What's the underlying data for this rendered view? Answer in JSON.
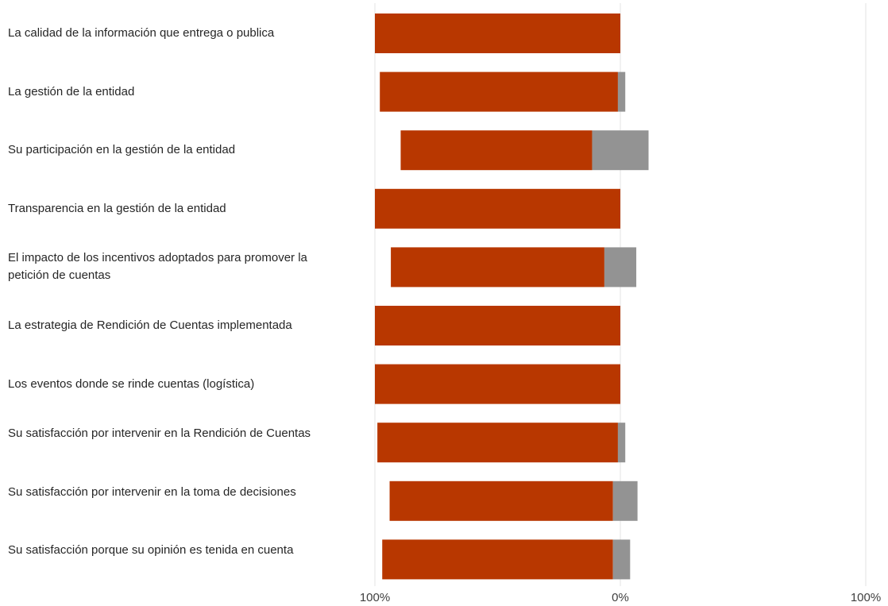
{
  "chart_data": {
    "type": "bar",
    "orientation": "horizontal",
    "stacked": "diverging",
    "categories": [
      "La calidad de la información que entrega o publica",
      "La gestión de la entidad",
      "Su participación en la gestión de la entidad",
      "Transparencia en la gestión de la entidad",
      "El impacto de los incentivos adoptados para promover la petición de cuentas",
      "La estrategia de Rendición de Cuentas implementada",
      "Los eventos donde se rinde cuentas (logística)",
      "Su satisfacción por intervenir en la Rendición de Cuentas",
      "Su satisfacción por intervenir en la toma de decisiones",
      "Su satisfacción porque su opinión es tenida en cuenta"
    ],
    "series": [
      {
        "color": "#b83700",
        "side": "left",
        "values": [
          100,
          97,
          78,
          100,
          87,
          100,
          100,
          98,
          91,
          94
        ]
      },
      {
        "color": "#939393",
        "side": "straddle",
        "values": [
          0,
          3,
          23,
          0,
          13,
          0,
          0,
          3,
          10,
          7
        ]
      }
    ],
    "straddle_left_fraction": [
      0,
      0.33,
      0.5,
      0,
      0.5,
      0,
      0,
      0.33,
      0.3,
      0.43
    ],
    "xlim": [
      -100,
      100
    ],
    "xticks": [
      "100%",
      "0%",
      "100%"
    ],
    "grid": true,
    "legend": "none"
  }
}
